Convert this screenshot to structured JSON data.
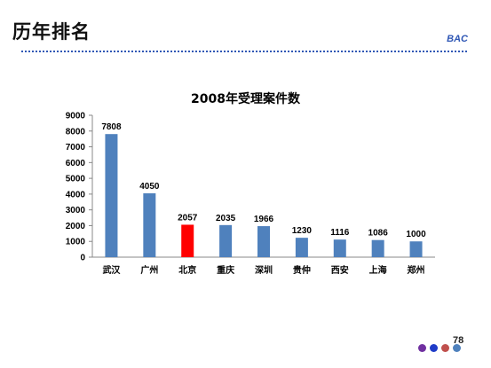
{
  "slide": {
    "title": "历年排名",
    "brand": "BAC",
    "page_number": "78"
  },
  "colors": {
    "bar": "#4f81bd",
    "highlight_bar": "#ff0000",
    "brand_blue": "#2f57b5",
    "dots": [
      "#7030a0",
      "#1f3cc8",
      "#c0504d",
      "#4f81bd"
    ]
  },
  "chart_data": {
    "type": "bar",
    "title": "2008年受理案件数",
    "xlabel": "",
    "ylabel": "",
    "categories": [
      "武汉",
      "广州",
      "北京",
      "重庆",
      "深圳",
      "贵仲",
      "西安",
      "上海",
      "郑州"
    ],
    "values": [
      7808,
      4050,
      2057,
      2035,
      1966,
      1230,
      1116,
      1086,
      1000
    ],
    "highlight_index": 2,
    "ylim": [
      0,
      9000
    ],
    "yticks": [
      0,
      1000,
      2000,
      3000,
      4000,
      5000,
      6000,
      7000,
      8000,
      9000
    ],
    "grid": false,
    "legend": "none",
    "data_labels": true
  }
}
